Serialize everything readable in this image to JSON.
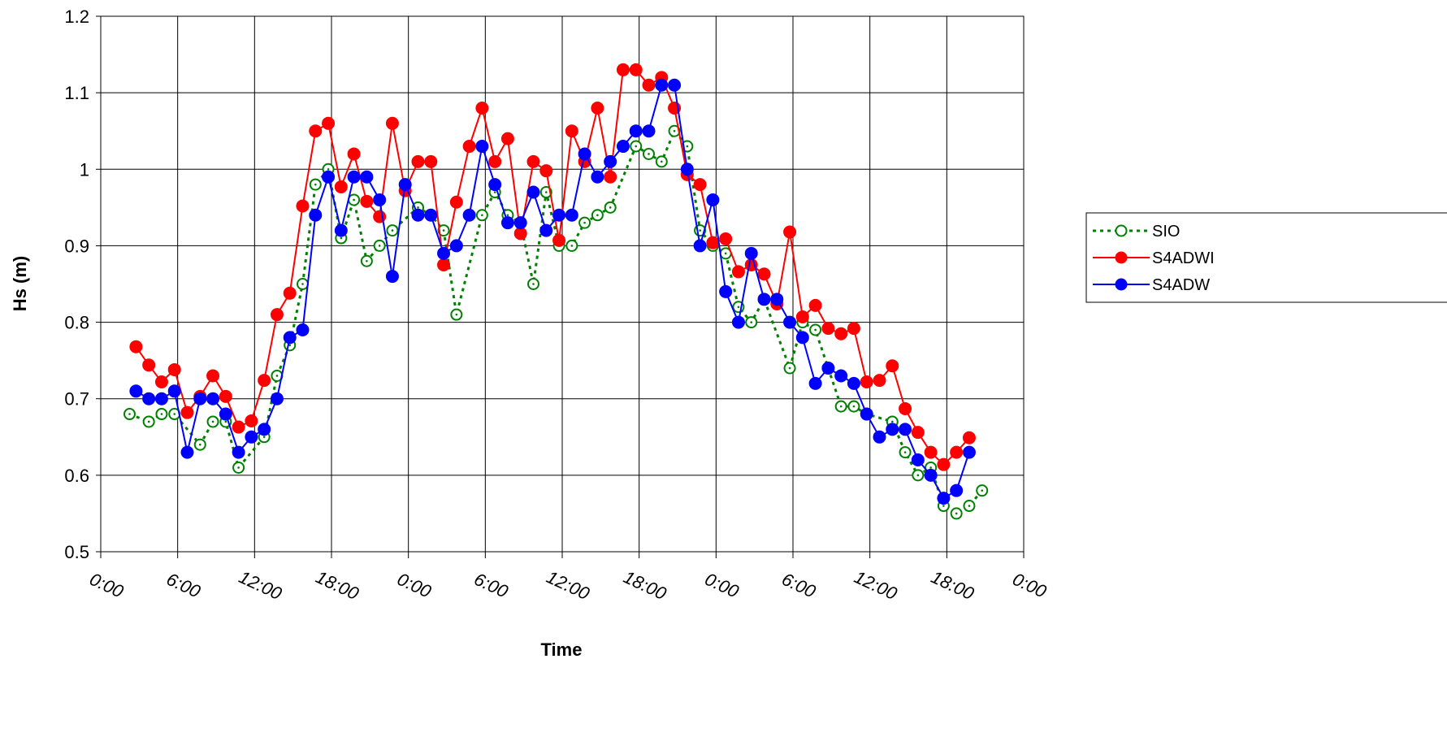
{
  "chart_data": {
    "type": "line",
    "title": "",
    "xlabel": "Time",
    "ylabel": "Hs (m)",
    "ylim": [
      0.5,
      1.2
    ],
    "yticks": [
      "0.5",
      "0.6",
      "0.7",
      "0.8",
      "0.9",
      "1",
      "1.1",
      "1.2"
    ],
    "x_tick_labels": [
      "0:00",
      "6:00",
      "12:00",
      "18:00",
      "0:00",
      "6:00",
      "12:00",
      "18:00",
      "0:00",
      "6:00",
      "12:00",
      "18:00",
      "0:00"
    ],
    "x_unit": "hours from first 0:00 tick",
    "xlim": [
      0,
      72
    ],
    "grid": true,
    "legend_position": "right",
    "series": [
      {
        "name": "SIO",
        "color": "#008000",
        "line_style": "dotted",
        "marker": "open-circle",
        "x": [
          2.25,
          3.75,
          4.75,
          5.75,
          7.75,
          8.75,
          9.75,
          10.75,
          12.75,
          13.75,
          14.75,
          15.75,
          16.75,
          17.75,
          18.75,
          19.75,
          20.75,
          21.75,
          22.75,
          24.75,
          25.75,
          26.75,
          27.75,
          29.75,
          30.75,
          31.75,
          32.75,
          33.75,
          34.75,
          35.75,
          36.75,
          37.75,
          38.75,
          39.75,
          41.75,
          42.75,
          43.75,
          44.75,
          45.75,
          46.75,
          47.75,
          48.75,
          49.75,
          50.75,
          51.75,
          53.75,
          54.75,
          55.75,
          56.75,
          57.75,
          58.75,
          59.75,
          61.75,
          62.75,
          63.75,
          64.75,
          65.75,
          66.75,
          67.75,
          68.75
        ],
        "y": [
          0.68,
          0.67,
          0.68,
          0.68,
          0.64,
          0.67,
          0.67,
          0.61,
          0.65,
          0.73,
          0.77,
          0.85,
          0.98,
          1.0,
          0.91,
          0.96,
          0.88,
          0.9,
          0.92,
          0.95,
          0.94,
          0.92,
          0.81,
          0.94,
          0.97,
          0.94,
          0.93,
          0.85,
          0.97,
          0.9,
          0.9,
          0.93,
          0.94,
          0.95,
          1.03,
          1.02,
          1.01,
          1.05,
          1.03,
          0.92,
          0.9,
          0.89,
          0.82,
          0.8,
          0.83,
          0.74,
          0.8,
          0.79,
          0.74,
          0.69,
          0.69,
          0.68,
          0.67,
          0.63,
          0.6,
          0.61,
          0.56,
          0.55,
          0.56,
          0.58
        ]
      },
      {
        "name": "S4ADWI",
        "color": "#ff0000",
        "line_style": "solid",
        "marker": "filled-circle",
        "x": [
          2.75,
          3.75,
          4.75,
          5.75,
          6.75,
          7.75,
          8.75,
          9.75,
          10.75,
          11.75,
          12.75,
          13.75,
          14.75,
          15.75,
          16.75,
          17.75,
          18.75,
          19.75,
          20.75,
          21.75,
          22.75,
          23.75,
          24.75,
          25.75,
          26.75,
          27.75,
          28.75,
          29.75,
          30.75,
          31.75,
          32.75,
          33.75,
          34.75,
          35.75,
          36.75,
          37.75,
          38.75,
          39.75,
          40.75,
          41.75,
          42.75,
          43.75,
          44.75,
          45.75,
          46.75,
          47.75,
          48.75,
          49.75,
          50.75,
          51.75,
          52.75,
          53.75,
          54.75,
          55.75,
          56.75,
          57.75,
          58.75,
          59.75,
          60.75,
          61.75,
          62.75,
          63.75,
          64.75,
          65.75,
          66.75,
          67.75
        ],
        "y": [
          0.768,
          0.744,
          0.722,
          0.738,
          0.682,
          0.703,
          0.73,
          0.703,
          0.663,
          0.671,
          0.724,
          0.81,
          0.838,
          0.952,
          1.05,
          1.06,
          0.977,
          1.02,
          0.958,
          0.938,
          1.06,
          0.972,
          1.01,
          1.01,
          0.875,
          0.957,
          1.03,
          1.08,
          1.01,
          1.04,
          0.916,
          1.01,
          0.998,
          0.907,
          1.05,
          1.01,
          1.08,
          0.99,
          1.13,
          1.13,
          1.11,
          1.12,
          1.08,
          0.993,
          0.98,
          0.904,
          0.909,
          0.866,
          0.875,
          0.863,
          0.824,
          0.918,
          0.807,
          0.822,
          0.792,
          0.785,
          0.792,
          0.722,
          0.724,
          0.743,
          0.687,
          0.656,
          0.63,
          0.614,
          0.63,
          0.649
        ]
      },
      {
        "name": "S4ADW",
        "color": "#0000ff",
        "line_style": "solid",
        "marker": "filled-circle",
        "x": [
          2.75,
          3.75,
          4.75,
          5.75,
          6.75,
          7.75,
          8.75,
          9.75,
          10.75,
          11.75,
          12.75,
          13.75,
          14.75,
          15.75,
          16.75,
          17.75,
          18.75,
          19.75,
          20.75,
          21.75,
          22.75,
          23.75,
          24.75,
          25.75,
          26.75,
          27.75,
          28.75,
          29.75,
          30.75,
          31.75,
          32.75,
          33.75,
          34.75,
          35.75,
          36.75,
          37.75,
          38.75,
          39.75,
          40.75,
          41.75,
          42.75,
          43.75,
          44.75,
          45.75,
          46.75,
          47.75,
          48.75,
          49.75,
          50.75,
          51.75,
          52.75,
          53.75,
          54.75,
          55.75,
          56.75,
          57.75,
          58.75,
          59.75,
          60.75,
          61.75,
          62.75,
          63.75,
          64.75,
          65.75,
          66.75,
          67.75
        ],
        "y": [
          0.71,
          0.7,
          0.7,
          0.71,
          0.63,
          0.7,
          0.7,
          0.68,
          0.63,
          0.65,
          0.66,
          0.7,
          0.78,
          0.79,
          0.94,
          0.99,
          0.92,
          0.99,
          0.99,
          0.96,
          0.86,
          0.98,
          0.94,
          0.94,
          0.89,
          0.9,
          0.94,
          1.03,
          0.98,
          0.93,
          0.93,
          0.97,
          0.92,
          0.94,
          0.94,
          1.02,
          0.99,
          1.01,
          1.03,
          1.05,
          1.05,
          1.11,
          1.11,
          1.0,
          0.9,
          0.96,
          0.84,
          0.8,
          0.89,
          0.83,
          0.83,
          0.8,
          0.78,
          0.72,
          0.74,
          0.73,
          0.72,
          0.68,
          0.65,
          0.66,
          0.66,
          0.62,
          0.6,
          0.57,
          0.58,
          0.63
        ]
      }
    ]
  }
}
